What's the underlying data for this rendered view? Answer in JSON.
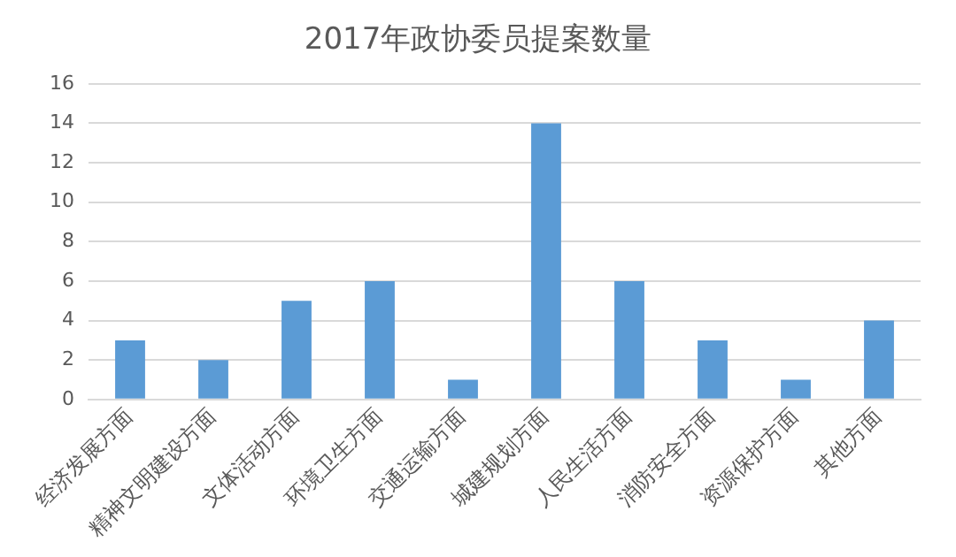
{
  "chart_data": {
    "type": "bar",
    "title": "2017年政协委员提案数量",
    "categories": [
      "经济发展方面",
      "精神文明建设方面",
      "文体活动方面",
      "环境卫生方面",
      "交通运输方面",
      "城建规划方面",
      "人民生活方面",
      "消防安全方面",
      "资源保护方面",
      "其他方面"
    ],
    "values": [
      3,
      2,
      5,
      6,
      1,
      14,
      6,
      3,
      1,
      4
    ],
    "color": "#5b9bd5",
    "ylim": [
      0,
      16
    ],
    "yticks": [
      0,
      2,
      4,
      6,
      8,
      10,
      12,
      14,
      16
    ],
    "grid": "y",
    "legend": false
  }
}
